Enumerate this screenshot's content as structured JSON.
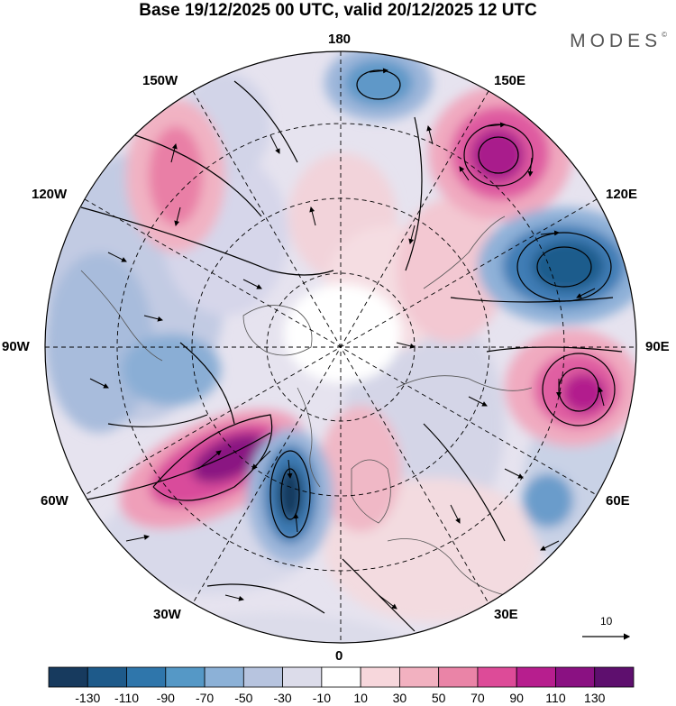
{
  "title": "Base 19/12/2025 00 UTC, valid 20/12/2025 12 UTC",
  "logo": "MODES",
  "logo_mark": "©",
  "longitude_labels": {
    "top": "180",
    "bottom": "0",
    "left": "90W",
    "right": "90E",
    "w150": "150W",
    "e150": "150E",
    "w120": "120W",
    "e120": "120E",
    "w60": "60W",
    "e60": "60E",
    "w30": "30W",
    "e30": "30E"
  },
  "reference_vector": {
    "label": "10"
  },
  "colorbar": {
    "labels": [
      "-130",
      "-110",
      "-90",
      "-70",
      "-50",
      "-30",
      "-10",
      "10",
      "30",
      "50",
      "70",
      "90",
      "110",
      "130"
    ],
    "colors": [
      "#173a5e",
      "#1e5a8a",
      "#2f76ab",
      "#5598c6",
      "#8cb1d7",
      "#b7c4df",
      "#dcdcea",
      "#ffffff",
      "#f7d7dc",
      "#f2b1c0",
      "#ea84a7",
      "#dd4b98",
      "#b71e8e",
      "#8a1182",
      "#5e0f6e"
    ]
  },
  "anomalies": [
    {
      "name": "anomaly-negative-east-pacific",
      "value": -70
    },
    {
      "name": "anomaly-positive-alaska",
      "value": 70
    },
    {
      "name": "anomaly-negative-far-east",
      "value": -110
    },
    {
      "name": "anomaly-positive-kamchatka",
      "value": 110
    },
    {
      "name": "anomaly-positive-siberia",
      "value": 90
    },
    {
      "name": "anomaly-positive-north-atlantic",
      "value": 130
    },
    {
      "name": "anomaly-negative-north-atlantic",
      "value": -130
    },
    {
      "name": "anomaly-negative-central-asia",
      "value": -50
    }
  ]
}
